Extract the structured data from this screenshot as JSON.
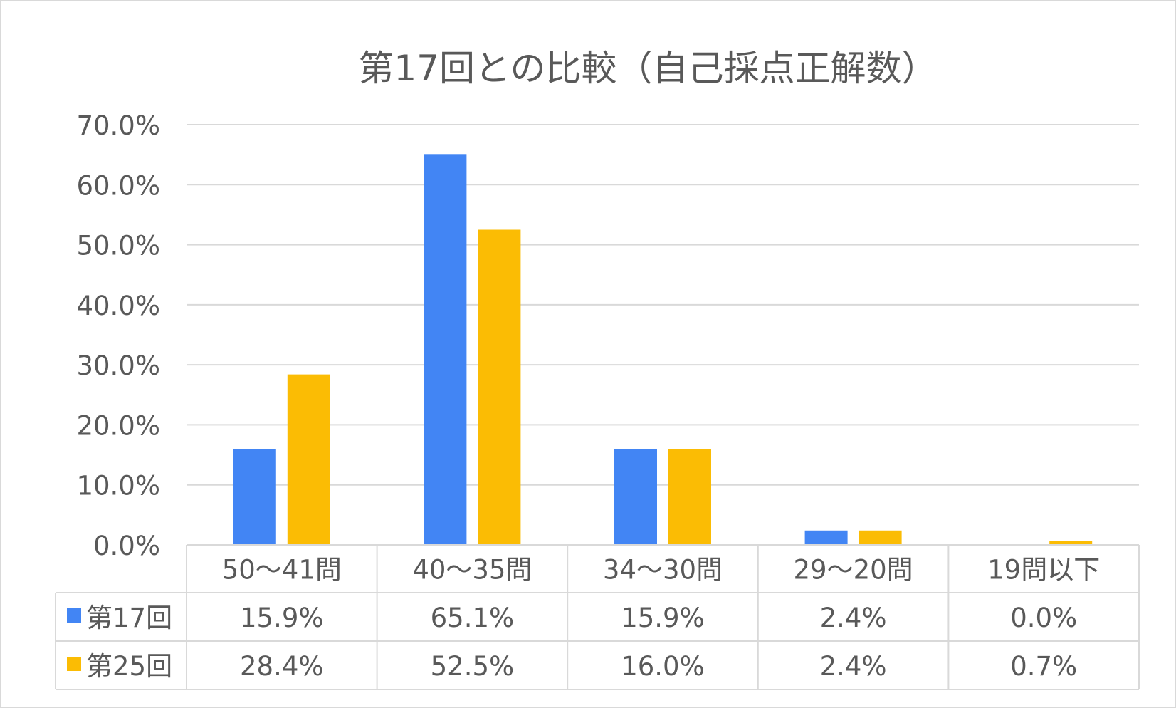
{
  "chart_data": {
    "type": "bar",
    "title": "第17回との比較（自己採点正解数）",
    "categories": [
      "50～41問",
      "40～35問",
      "34～30問",
      "29～20問",
      "19問以下"
    ],
    "series": [
      {
        "name": "第17回",
        "color": "#4285F4",
        "values": [
          15.9,
          65.1,
          15.9,
          2.4,
          0.0
        ],
        "labels": [
          "15.9%",
          "65.1%",
          "15.9%",
          "2.4%",
          "0.0%"
        ]
      },
      {
        "name": "第25回",
        "color": "#FBBC04",
        "values": [
          28.4,
          52.5,
          16.0,
          2.4,
          0.7
        ],
        "labels": [
          "28.4%",
          "52.5%",
          "16.0%",
          "2.4%",
          "0.7%"
        ]
      }
    ],
    "ylim": [
      0,
      70
    ],
    "yticks": [
      0,
      10,
      20,
      30,
      40,
      50,
      60,
      70
    ],
    "ytick_labels": [
      "0.0%",
      "10.0%",
      "20.0%",
      "30.0%",
      "40.0%",
      "50.0%",
      "60.0%",
      "70.0%"
    ],
    "grid": true,
    "data_table": true
  }
}
